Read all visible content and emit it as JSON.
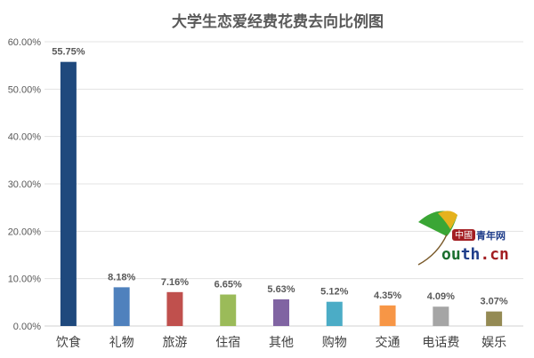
{
  "chart_data": {
    "type": "bar",
    "title": "大学生恋爱经费花费去向比例图",
    "categories": [
      "饮食",
      "礼物",
      "旅游",
      "住宿",
      "其他",
      "购物",
      "交通",
      "电话费",
      "娱乐"
    ],
    "values": [
      55.75,
      8.18,
      7.16,
      6.65,
      5.63,
      5.12,
      4.35,
      4.09,
      3.07
    ],
    "data_labels": [
      "55.75%",
      "8.18%",
      "7.16%",
      "6.65%",
      "5.63%",
      "5.12%",
      "4.35%",
      "4.09%",
      "3.07%"
    ],
    "colors": [
      "#1f497d",
      "#4f81bd",
      "#c0504d",
      "#9bbb59",
      "#8064a2",
      "#4bacc6",
      "#f79646",
      "#a5a5a5",
      "#948a54"
    ],
    "ylim": [
      0,
      60
    ],
    "yticks": [
      "0.00%",
      "10.00%",
      "20.00%",
      "30.00%",
      "40.00%",
      "50.00%",
      "60.00%"
    ],
    "xlabel": "",
    "ylabel": "",
    "grid": true,
    "legend": "none"
  },
  "watermark": {
    "brand_cn": "中國青年网",
    "brand_en": "outh.cn"
  }
}
